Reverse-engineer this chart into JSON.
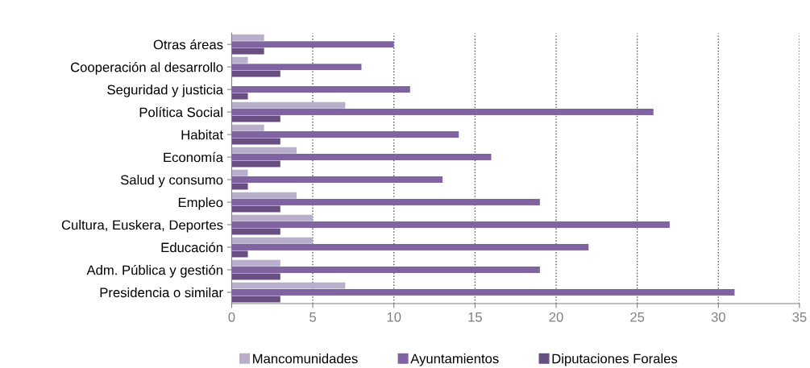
{
  "chart_data": {
    "type": "bar",
    "orientation": "horizontal",
    "categories": [
      "Otras áreas",
      "Cooperación al desarrollo",
      "Seguridad y justicia",
      "Política Social",
      "Habitat",
      "Economía",
      "Salud y consumo",
      "Empleo",
      "Cultura, Euskera, Deportes",
      "Educación",
      "Adm. Pública y gestión",
      "Presidencia o similar"
    ],
    "series": [
      {
        "name": "Mancomunidades",
        "color": "#b9aecb",
        "values": [
          2,
          1,
          0,
          7,
          2,
          4,
          1,
          4,
          5,
          5,
          3,
          7
        ]
      },
      {
        "name": "Ayuntamientos",
        "color": "#8064a2",
        "values": [
          10,
          8,
          11,
          26,
          14,
          16,
          13,
          19,
          27,
          22,
          19,
          31
        ]
      },
      {
        "name": "Diputaciones Forales",
        "color": "#674f82",
        "values": [
          2,
          3,
          1,
          3,
          3,
          3,
          1,
          3,
          3,
          1,
          3,
          3
        ]
      }
    ],
    "xlim": [
      0,
      35
    ],
    "xticks": [
      0,
      5,
      10,
      15,
      20,
      25,
      30,
      35
    ],
    "grid": "x",
    "legend": "bottom",
    "line_style": "dotted"
  }
}
